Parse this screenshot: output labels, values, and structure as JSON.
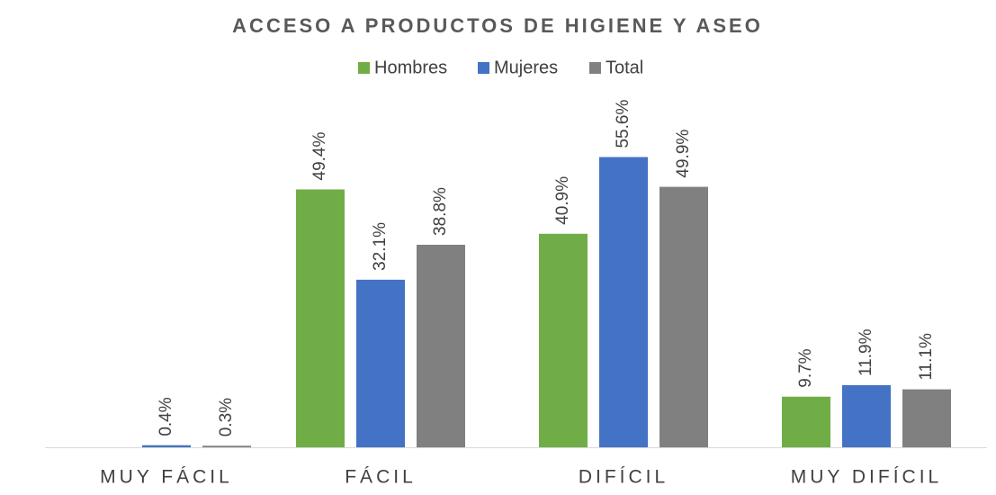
{
  "chart_data": {
    "type": "bar",
    "title": "ACCESO A PRODUCTOS DE HIGIENE Y ASEO",
    "categories": [
      "MUY FÁCIL",
      "FÁCIL",
      "DIFÍCIL",
      "MUY DIFÍCIL"
    ],
    "series": [
      {
        "name": "Hombres",
        "color": "#70ad47",
        "values": [
          null,
          49.4,
          40.9,
          9.7
        ],
        "value_labels": [
          null,
          "49.4%",
          "40.9%",
          "9.7%"
        ]
      },
      {
        "name": "Mujeres",
        "color": "#4472c4",
        "values": [
          0.4,
          32.1,
          55.6,
          11.9
        ],
        "value_labels": [
          "0.4%",
          "32.1%",
          "55.6%",
          "11.9%"
        ]
      },
      {
        "name": "Total",
        "color": "#808080",
        "values": [
          0.3,
          38.8,
          49.9,
          11.1
        ],
        "value_labels": [
          "0.3%",
          "38.8%",
          "49.9%",
          "11.1%"
        ]
      }
    ]
  }
}
